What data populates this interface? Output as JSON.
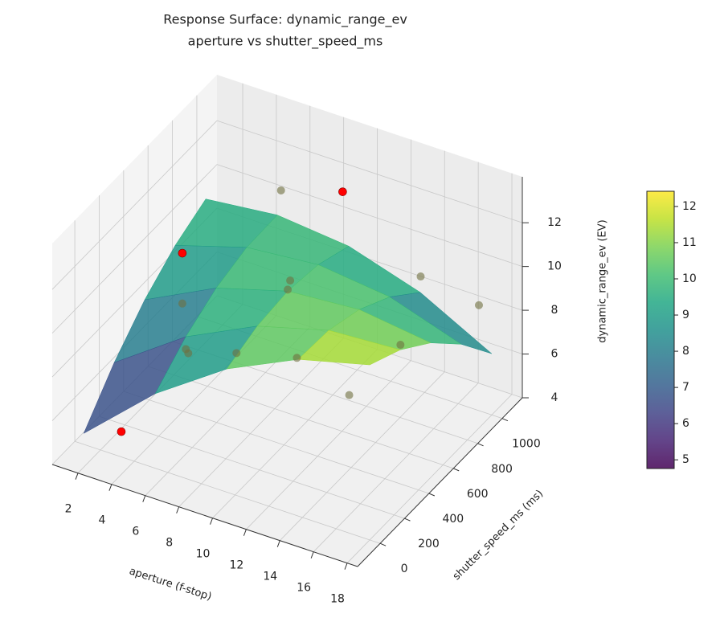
{
  "chart_data": {
    "type": "surface3d",
    "title": "Response Surface: dynamic_range_ev",
    "subtitle": "aperture vs shutter_speed_ms",
    "xlabel": "aperture (f-stop)",
    "ylabel": "shutter_speed_ms (ms)",
    "zlabel": "dynamic_range_ev (EV)",
    "xlim": [
      0.47,
      18.62
    ],
    "ylim": [
      -185,
      1165
    ],
    "zlim": [
      4,
      14.1
    ],
    "xticks": [
      2,
      4,
      6,
      8,
      10,
      12,
      14,
      16,
      18
    ],
    "yticks": [
      0,
      200,
      400,
      600,
      800,
      1000
    ],
    "zticks": [
      4,
      6,
      8,
      10,
      12
    ],
    "grid": true,
    "colormap": "viridis",
    "surface_alpha": 0.85,
    "surface": {
      "x": [
        1,
        5.25,
        9.5,
        13.75,
        18
      ],
      "y": [
        0,
        250,
        500,
        750,
        1000
      ],
      "z": [
        [
          4.5,
          7.41,
          9.63,
          11.16,
          12.0
        ],
        [
          6.31,
          8.58,
          10.16,
          11.06,
          11.26
        ],
        [
          7.75,
          9.38,
          10.33,
          10.58,
          10.15
        ],
        [
          8.81,
          9.81,
          10.11,
          9.73,
          8.66
        ],
        [
          9.5,
          9.86,
          9.53,
          8.51,
          6.8
        ]
      ]
    },
    "points": {
      "x": [
        2.8,
        2.8,
        9.5,
        2.8,
        6.2,
        6.2,
        9.5,
        9.5,
        9.5,
        6.2,
        12.8,
        14.5,
        16.2,
        16.2,
        17.6
      ],
      "y": [
        60,
        560,
        950,
        560,
        120,
        140,
        80,
        500,
        520,
        900,
        120,
        900,
        500,
        80,
        950
      ],
      "z": [
        4.7,
        10.0,
        12.3,
        7.7,
        9.0,
        8.7,
        9.9,
        10.4,
        10.7,
        11.8,
        10.3,
        10.0,
        9.6,
        9.7,
        9.2
      ],
      "colors": [
        "#ff0000",
        "#ff0000",
        "#ff0000",
        "#6f6f40",
        "#6f6f40",
        "#6f6f40",
        "#6f6f40",
        "#6f6f40",
        "#6f6f40",
        "#6f6f40",
        "#6f6f40",
        "#6f6f40",
        "#6f6f40",
        "#6f6f40",
        "#6f6f40"
      ]
    },
    "colorbar": {
      "lim": [
        4.76,
        12.42
      ],
      "ticks": [
        5,
        6,
        7,
        8,
        9,
        10,
        11,
        12
      ]
    }
  }
}
